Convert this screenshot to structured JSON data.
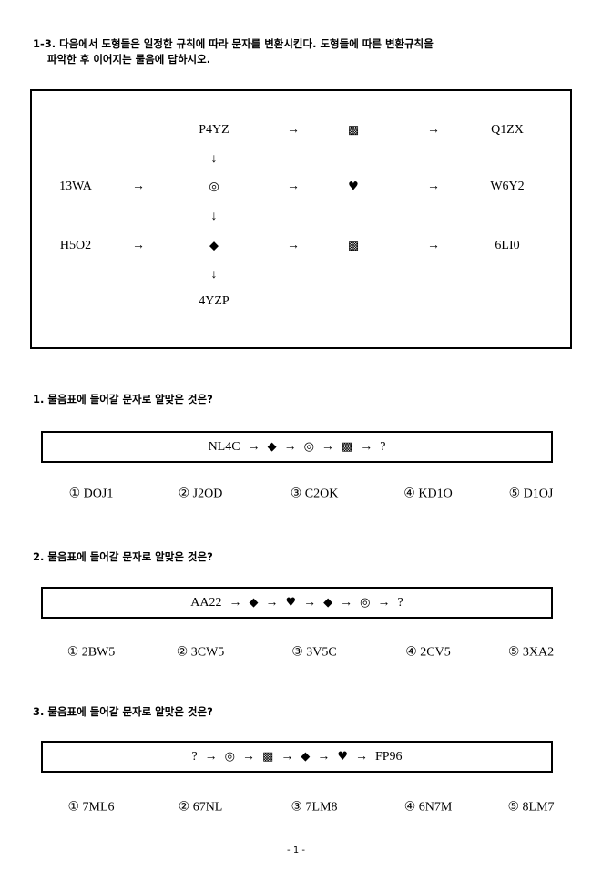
{
  "header": {
    "line1": "1-3. 다음에서 도형들은 일정한 규칙에 따라 문자를 변환시킨다. 도형들에 따른 변환규칙을",
    "line2": "파악한 후 이어지는 물음에 답하시오."
  },
  "diagram": {
    "p4yz": "P4YZ",
    "q1zx": "Q1ZX",
    "13wa": "13WA",
    "w6y2": "W6Y2",
    "h5o2": "H5O2",
    "6li0": "6LI0",
    "4yzp": "4YZP",
    "arrow_right": "→",
    "arrow_down": "↓",
    "pattern": "▩",
    "circle": "◎",
    "heart": "♥",
    "diamond": "◆"
  },
  "questions": [
    {
      "title": "1. 물음표에 들어갈 문자로 알맞은 것은?",
      "sequence": [
        "NL4C",
        "→",
        "◆",
        "→",
        "◎",
        "→",
        "▩",
        "→",
        "?"
      ],
      "options": [
        "① DOJ1",
        "② J2OD",
        "③ C2OK",
        "④ KD1O",
        "⑤ D1OJ"
      ]
    },
    {
      "title": "2. 물음표에 들어갈 문자로 알맞은 것은?",
      "sequence": [
        "AA22",
        "→",
        "◆",
        "→",
        "♥",
        "→",
        "◆",
        "→",
        "◎",
        "→",
        "?"
      ],
      "options": [
        "① 2BW5",
        "② 3CW5",
        "③ 3V5C",
        "④ 2CV5",
        "⑤ 3XA2"
      ]
    },
    {
      "title": "3. 물음표에 들어갈 문자로 알맞은 것은?",
      "sequence": [
        "?",
        "→",
        "◎",
        "→",
        "▩",
        "→",
        "◆",
        "→",
        "♥",
        "→",
        "FP96"
      ],
      "options": [
        "① 7ML6",
        "② 67NL",
        "③ 7LM8",
        "④ 6N7M",
        "⑤ 8LM7"
      ]
    }
  ],
  "footer": "- 1 -"
}
